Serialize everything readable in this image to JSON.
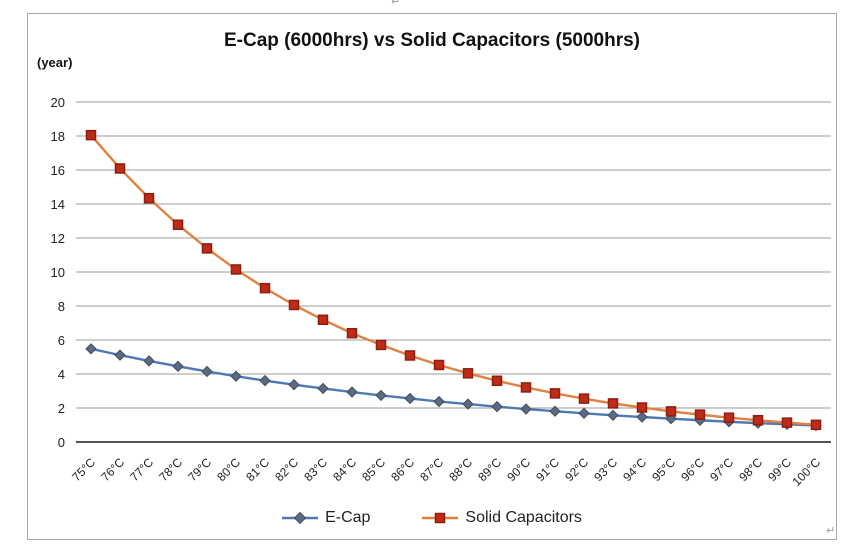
{
  "document": {
    "top_paragraph_mark": "↵",
    "bottom_paragraph_mark": "↵"
  },
  "chart_data": {
    "type": "line",
    "title": "E-Cap (6000hrs) vs Solid Capacitors (5000hrs)",
    "y_axis_unit_label": "(year)",
    "xlabel": "",
    "ylabel": "(year)",
    "ylim": [
      0,
      20
    ],
    "y_tick_step": 2,
    "grid": true,
    "legend_position": "bottom",
    "categories": [
      "75°C",
      "76°C",
      "77°C",
      "78°C",
      "79°C",
      "80°C",
      "81°C",
      "82°C",
      "83°C",
      "84°C",
      "85°C",
      "86°C",
      "87°C",
      "88°C",
      "89°C",
      "90°C",
      "91°C",
      "92°C",
      "93°C",
      "94°C",
      "95°C",
      "96°C",
      "97°C",
      "98°C",
      "99°C",
      "100°C"
    ],
    "series": [
      {
        "name": "E-Cap",
        "marker": "diamond",
        "line_color": "#4e79b5",
        "marker_fill": "#5c6a84",
        "marker_stroke": "#414d63",
        "values": [
          5.48,
          5.11,
          4.77,
          4.45,
          4.15,
          3.87,
          3.61,
          3.37,
          3.15,
          2.94,
          2.74,
          2.56,
          2.38,
          2.23,
          2.08,
          1.94,
          1.81,
          1.69,
          1.57,
          1.47,
          1.37,
          1.28,
          1.19,
          1.11,
          1.04,
          0.97
        ]
      },
      {
        "name": "Solid Capacitors",
        "marker": "square",
        "line_color": "#e0813f",
        "marker_fill": "#be2b16",
        "marker_stroke": "#8f1d10",
        "values": [
          18.05,
          16.09,
          14.34,
          12.78,
          11.39,
          10.15,
          9.05,
          8.06,
          7.19,
          6.4,
          5.71,
          5.09,
          4.53,
          4.04,
          3.6,
          3.21,
          2.86,
          2.55,
          2.27,
          2.03,
          1.8,
          1.61,
          1.43,
          1.28,
          1.14,
          1.01
        ]
      }
    ],
    "colors": {
      "gridline": "#9c9c9c",
      "axis_line": "#1a1a1a",
      "chart_border": "#a8a8a8",
      "tick_label": "#222222"
    }
  }
}
